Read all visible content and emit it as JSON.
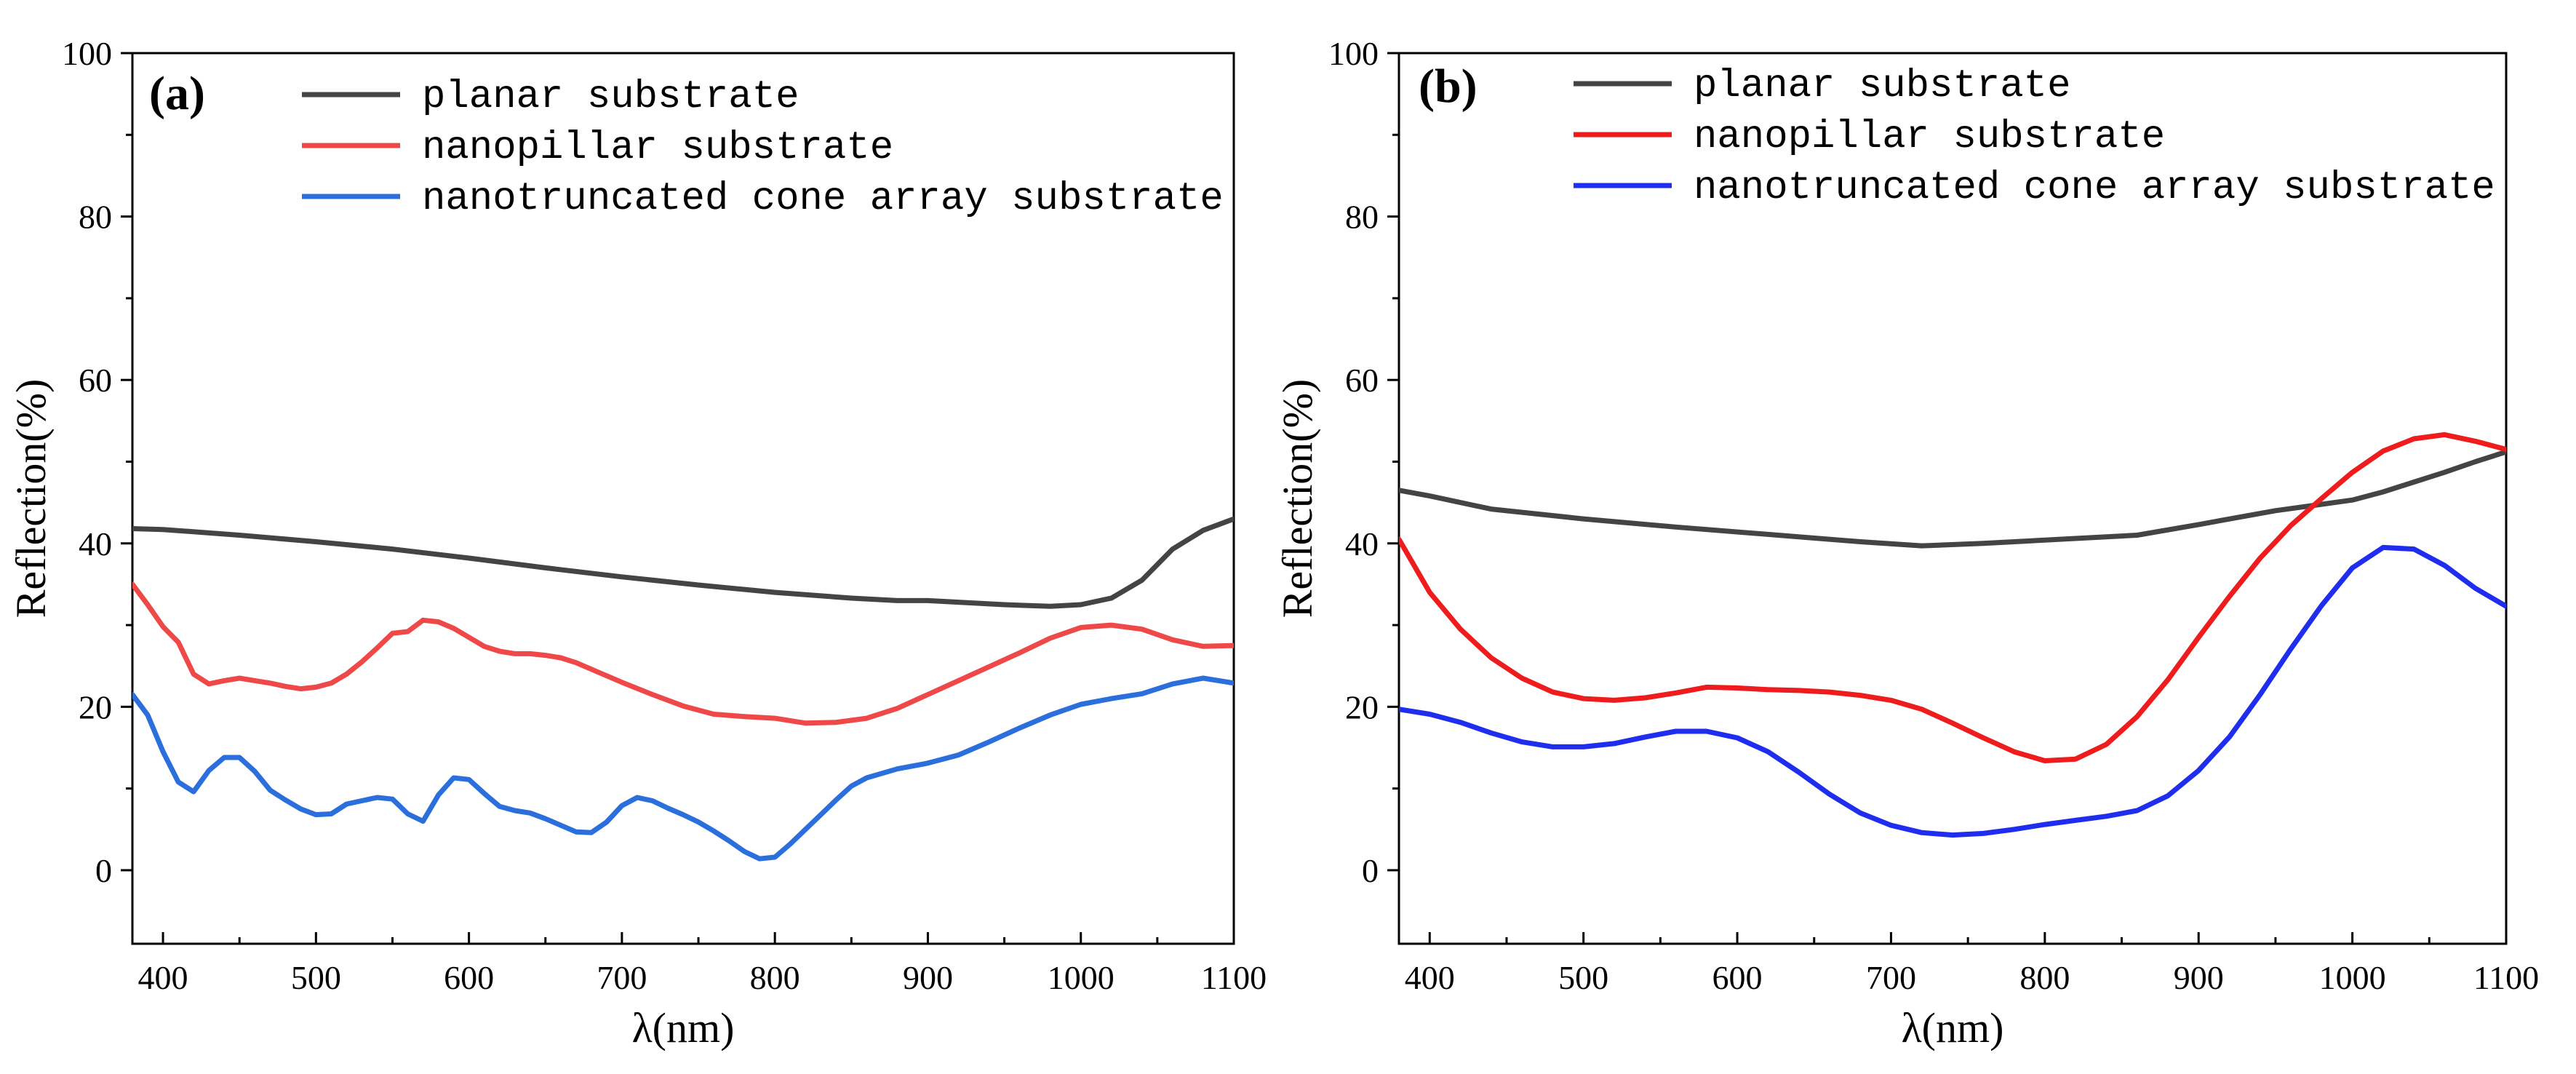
{
  "chart_data": [
    {
      "type": "line",
      "panel_label": "(a)",
      "xlabel": "λ(nm)",
      "ylabel": "Reflection(%)",
      "xlim": [
        380,
        1100
      ],
      "ylim": [
        -9,
        100
      ],
      "xticks": [
        400,
        500,
        600,
        700,
        800,
        900,
        1000,
        1100
      ],
      "yticks": [
        0,
        20,
        40,
        60,
        80,
        100
      ],
      "legend_position": "top-right",
      "series": [
        {
          "name": "planar substrate",
          "color": "#444444",
          "x": [
            380,
            400,
            450,
            500,
            550,
            600,
            650,
            700,
            750,
            800,
            850,
            880,
            900,
            950,
            980,
            1000,
            1020,
            1040,
            1060,
            1080,
            1100
          ],
          "y": [
            41.8,
            41.7,
            41.0,
            40.2,
            39.3,
            38.2,
            37.0,
            35.9,
            34.9,
            34.0,
            33.3,
            33.0,
            33.0,
            32.5,
            32.3,
            32.5,
            33.3,
            35.5,
            39.3,
            41.6,
            43.0
          ]
        },
        {
          "name": "nanopillar substrate",
          "color": "#ef4848",
          "x": [
            380,
            390,
            400,
            410,
            420,
            430,
            440,
            450,
            460,
            470,
            480,
            490,
            500,
            510,
            520,
            530,
            540,
            550,
            560,
            570,
            580,
            590,
            600,
            610,
            620,
            630,
            640,
            650,
            660,
            670,
            680,
            690,
            700,
            720,
            740,
            760,
            780,
            800,
            820,
            840,
            860,
            880,
            900,
            920,
            940,
            960,
            980,
            1000,
            1020,
            1040,
            1060,
            1080,
            1100
          ],
          "y": [
            35.0,
            32.5,
            29.8,
            27.9,
            24.0,
            22.8,
            23.2,
            23.5,
            23.2,
            22.9,
            22.5,
            22.2,
            22.4,
            22.9,
            24.0,
            25.5,
            27.2,
            29.0,
            29.2,
            30.6,
            30.4,
            29.6,
            28.5,
            27.4,
            26.8,
            26.5,
            26.5,
            26.3,
            26.0,
            25.4,
            24.6,
            23.8,
            23.0,
            21.5,
            20.1,
            19.1,
            18.8,
            18.6,
            18.0,
            18.1,
            18.6,
            19.8,
            21.5,
            23.2,
            24.9,
            26.6,
            28.4,
            29.7,
            30.0,
            29.5,
            28.2,
            27.4,
            27.5
          ]
        },
        {
          "name": "nanotruncated cone array substrate",
          "color": "#2a6fdb",
          "x": [
            380,
            390,
            400,
            410,
            420,
            430,
            440,
            450,
            460,
            470,
            480,
            490,
            500,
            510,
            520,
            530,
            540,
            550,
            560,
            570,
            580,
            590,
            600,
            610,
            620,
            630,
            640,
            650,
            660,
            670,
            680,
            690,
            700,
            710,
            720,
            730,
            740,
            750,
            760,
            770,
            780,
            790,
            800,
            810,
            820,
            830,
            840,
            850,
            860,
            880,
            900,
            920,
            940,
            960,
            980,
            1000,
            1020,
            1040,
            1060,
            1080,
            1100
          ],
          "y": [
            21.5,
            19.0,
            14.5,
            10.8,
            9.6,
            12.2,
            13.8,
            13.8,
            12.1,
            9.8,
            8.6,
            7.5,
            6.8,
            6.9,
            8.1,
            8.5,
            8.9,
            8.7,
            6.9,
            6.0,
            9.2,
            11.3,
            11.1,
            9.4,
            7.8,
            7.3,
            7.0,
            6.3,
            5.5,
            4.7,
            4.6,
            5.9,
            7.9,
            8.9,
            8.5,
            7.6,
            6.8,
            5.9,
            4.8,
            3.6,
            2.3,
            1.4,
            1.6,
            3.2,
            5.0,
            6.8,
            8.6,
            10.3,
            11.3,
            12.4,
            13.1,
            14.1,
            15.7,
            17.4,
            19.0,
            20.3,
            21.0,
            21.6,
            22.8,
            23.5,
            22.9
          ]
        }
      ]
    },
    {
      "type": "line",
      "panel_label": "(b)",
      "xlabel": "λ(nm)",
      "ylabel": "Reflection(%)",
      "xlim": [
        380,
        1100
      ],
      "ylim": [
        -9,
        100
      ],
      "xticks": [
        400,
        500,
        600,
        700,
        800,
        900,
        1000,
        1100
      ],
      "yticks": [
        0,
        20,
        40,
        60,
        80,
        100
      ],
      "legend_position": "top-right",
      "series": [
        {
          "name": "planar substrate",
          "color": "#444444",
          "x": [
            380,
            400,
            440,
            500,
            560,
            620,
            680,
            720,
            760,
            820,
            860,
            900,
            950,
            1000,
            1020,
            1040,
            1060,
            1080,
            1100
          ],
          "y": [
            46.5,
            45.8,
            44.2,
            43.0,
            42.0,
            41.1,
            40.2,
            39.7,
            40.0,
            40.6,
            41.0,
            42.3,
            44.0,
            45.3,
            46.3,
            47.5,
            48.7,
            50.0,
            51.2
          ]
        },
        {
          "name": "nanopillar substrate",
          "color": "#ee1c1c",
          "x": [
            380,
            400,
            420,
            440,
            460,
            480,
            500,
            520,
            540,
            560,
            580,
            600,
            620,
            640,
            660,
            680,
            700,
            720,
            740,
            760,
            780,
            800,
            820,
            840,
            860,
            880,
            900,
            920,
            940,
            960,
            980,
            1000,
            1020,
            1040,
            1060,
            1080,
            1100
          ],
          "y": [
            40.5,
            34.0,
            29.5,
            26.0,
            23.5,
            21.8,
            21.0,
            20.8,
            21.1,
            21.7,
            22.4,
            22.3,
            22.1,
            22.0,
            21.8,
            21.4,
            20.8,
            19.7,
            18.0,
            16.2,
            14.5,
            13.4,
            13.6,
            15.4,
            18.8,
            23.3,
            28.5,
            33.5,
            38.2,
            42.2,
            45.5,
            48.7,
            51.3,
            52.8,
            53.3,
            52.5,
            51.5
          ]
        },
        {
          "name": "nanotruncated cone array substrate",
          "color": "#1f2eee",
          "x": [
            380,
            400,
            420,
            440,
            460,
            480,
            500,
            520,
            540,
            560,
            580,
            600,
            620,
            640,
            660,
            680,
            700,
            720,
            740,
            760,
            780,
            800,
            820,
            840,
            860,
            880,
            900,
            920,
            940,
            960,
            980,
            1000,
            1020,
            1040,
            1060,
            1080,
            1100
          ],
          "y": [
            19.7,
            19.1,
            18.1,
            16.8,
            15.7,
            15.1,
            15.1,
            15.5,
            16.3,
            17.0,
            17.0,
            16.2,
            14.5,
            12.0,
            9.3,
            7.0,
            5.5,
            4.6,
            4.3,
            4.5,
            5.0,
            5.6,
            6.1,
            6.6,
            7.3,
            9.1,
            12.2,
            16.3,
            21.5,
            27.1,
            32.4,
            37.0,
            39.5,
            39.3,
            37.3,
            34.5,
            32.3
          ]
        }
      ]
    }
  ]
}
